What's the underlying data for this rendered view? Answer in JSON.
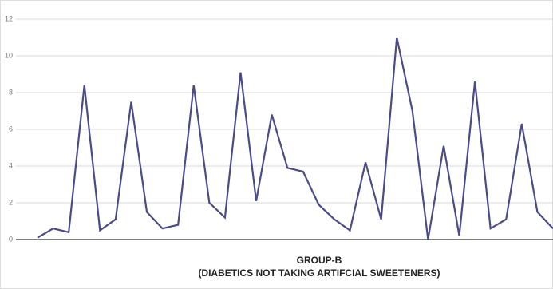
{
  "chart_data": {
    "type": "line",
    "title": "GROUP-B",
    "subtitle": "(DIABETICS NOT TAKING ARTIFCIAL SWEETENERS)",
    "series": [
      {
        "color": "#4b4b86",
        "values": [
          0.1,
          0.6,
          0.4,
          8.4,
          0.5,
          1.1,
          7.5,
          1.5,
          0.6,
          0.8,
          8.4,
          2.0,
          1.2,
          9.1,
          2.1,
          6.8,
          3.9,
          3.7,
          1.9,
          1.1,
          0.5,
          4.2,
          1.1,
          11.0,
          7.0,
          0.0,
          5.1,
          0.2,
          8.6,
          0.6,
          1.1,
          6.3,
          1.5,
          0.6
        ]
      }
    ],
    "ylim": [
      0,
      12
    ],
    "yticks": [
      0,
      2,
      4,
      6,
      8,
      10,
      12
    ],
    "grid": true
  }
}
